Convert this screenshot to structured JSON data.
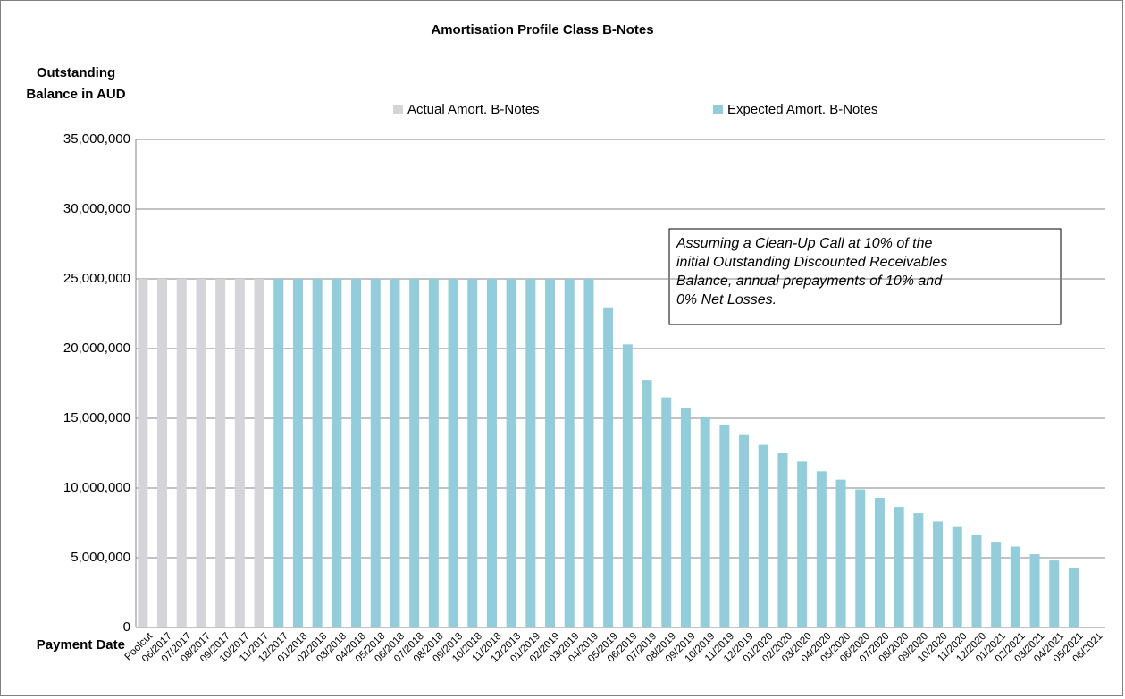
{
  "chart_data": {
    "type": "bar",
    "title": "Amortisation Profile Class B-Notes",
    "ylabel": [
      "Outstanding",
      "Balance  in AUD"
    ],
    "xlabel": "Payment Date",
    "annotation": [
      "Assuming a Clean-Up  Call at 10% of the",
      "initial Outstanding Discounted Receivables",
      "Balance, annual prepayments  of 10% and",
      "0% Net Losses."
    ],
    "categories": [
      "Poolcut",
      "06/2017",
      "07/2017",
      "08/2017",
      "09/2017",
      "10/2017",
      "11/2017",
      "12/2017",
      "01/2018",
      "02/2018",
      "03/2018",
      "04/2018",
      "05/2018",
      "06/2018",
      "07/2018",
      "08/2018",
      "09/2018",
      "10/2018",
      "11/2018",
      "12/2018",
      "01/2019",
      "02/2019",
      "03/2019",
      "04/2019",
      "05/2019",
      "06/2019",
      "07/2019",
      "08/2019",
      "09/2019",
      "10/2019",
      "11/2019",
      "12/2019",
      "01/2020",
      "02/2020",
      "03/2020",
      "04/2020",
      "05/2020",
      "06/2020",
      "07/2020",
      "08/2020",
      "09/2020",
      "10/2020",
      "11/2020",
      "12/2020",
      "01/2021",
      "02/2021",
      "03/2021",
      "04/2021",
      "05/2021",
      "06/2021"
    ],
    "series": [
      {
        "name": "Actual Amort. B-Notes",
        "color": "#d4d4d9",
        "values": [
          25000000,
          25000000,
          25000000,
          25000000,
          25000000,
          25000000,
          25000000,
          null,
          null,
          null,
          null,
          null,
          null,
          null,
          null,
          null,
          null,
          null,
          null,
          null,
          null,
          null,
          null,
          null,
          null,
          null,
          null,
          null,
          null,
          null,
          null,
          null,
          null,
          null,
          null,
          null,
          null,
          null,
          null,
          null,
          null,
          null,
          null,
          null,
          null,
          null,
          null,
          null,
          null,
          null
        ]
      },
      {
        "name": "Expected Amort. B-Notes",
        "color": "#92cddc",
        "values": [
          null,
          null,
          null,
          null,
          null,
          null,
          null,
          25000000,
          25000000,
          25000000,
          25000000,
          25000000,
          25000000,
          25000000,
          25000000,
          25000000,
          25000000,
          25000000,
          25000000,
          25000000,
          25000000,
          25000000,
          25000000,
          25000000,
          22900000,
          20300000,
          17750000,
          16500000,
          15750000,
          15100000,
          14500000,
          13800000,
          13100000,
          12500000,
          11900000,
          11200000,
          10600000,
          9900000,
          9300000,
          8650000,
          8200000,
          7600000,
          7200000,
          6650000,
          6150000,
          5800000,
          5250000,
          4800000,
          4300000,
          null
        ]
      }
    ],
    "ylim": [
      0,
      35000000
    ],
    "yticks": [
      0,
      {
        "value": 5000000,
        "label": "5,000,000"
      },
      {
        "value": 10000000,
        "label": "10,000,000"
      },
      {
        "value": 15000000,
        "label": "15,000,000"
      },
      {
        "value": 20000000,
        "label": "20,000,000"
      },
      {
        "value": 25000000,
        "label": "25,000,000"
      },
      {
        "value": 30000000,
        "label": "30,000,000"
      },
      {
        "value": 35000000,
        "label": "35,000,000"
      }
    ],
    "grid": true,
    "legend": "top"
  }
}
